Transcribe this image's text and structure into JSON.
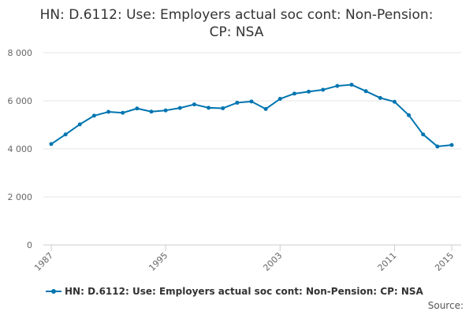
{
  "chart_data": {
    "type": "line",
    "title_line1": "HN: D.6112: Use: Employers actual soc cont: Non-Pension:",
    "title_line2": "CP: NSA",
    "x": [
      1987,
      1988,
      1989,
      1990,
      1991,
      1992,
      1993,
      1994,
      1995,
      1996,
      1997,
      1998,
      1999,
      2000,
      2001,
      2002,
      2003,
      2004,
      2005,
      2006,
      2007,
      2008,
      2009,
      2010,
      2011,
      2012,
      2013,
      2014,
      2015
    ],
    "series": [
      {
        "name": "HN: D.6112: Use: Employers actual soc cont: Non-Pension: CP: NSA",
        "color": "#0075b0",
        "values": [
          4200,
          4600,
          5020,
          5380,
          5540,
          5500,
          5680,
          5550,
          5600,
          5700,
          5850,
          5710,
          5690,
          5920,
          5970,
          5660,
          6080,
          6300,
          6380,
          6460,
          6620,
          6670,
          6400,
          6120,
          5960,
          5400,
          4600,
          4100,
          4160
        ]
      }
    ],
    "ylim": [
      0,
      8000
    ],
    "yticks": [
      0,
      2000,
      4000,
      6000,
      8000
    ],
    "ytick_labels": [
      "0",
      "2 000",
      "4 000",
      "6 000",
      "8 000"
    ],
    "xticks": [
      1987,
      1995,
      2003,
      2011,
      2015
    ],
    "xtick_labels": [
      "1987",
      "1995",
      "2003",
      "2011",
      "2015"
    ],
    "grid": true,
    "legend_position": "bottom-left",
    "source_label": "Source:"
  }
}
